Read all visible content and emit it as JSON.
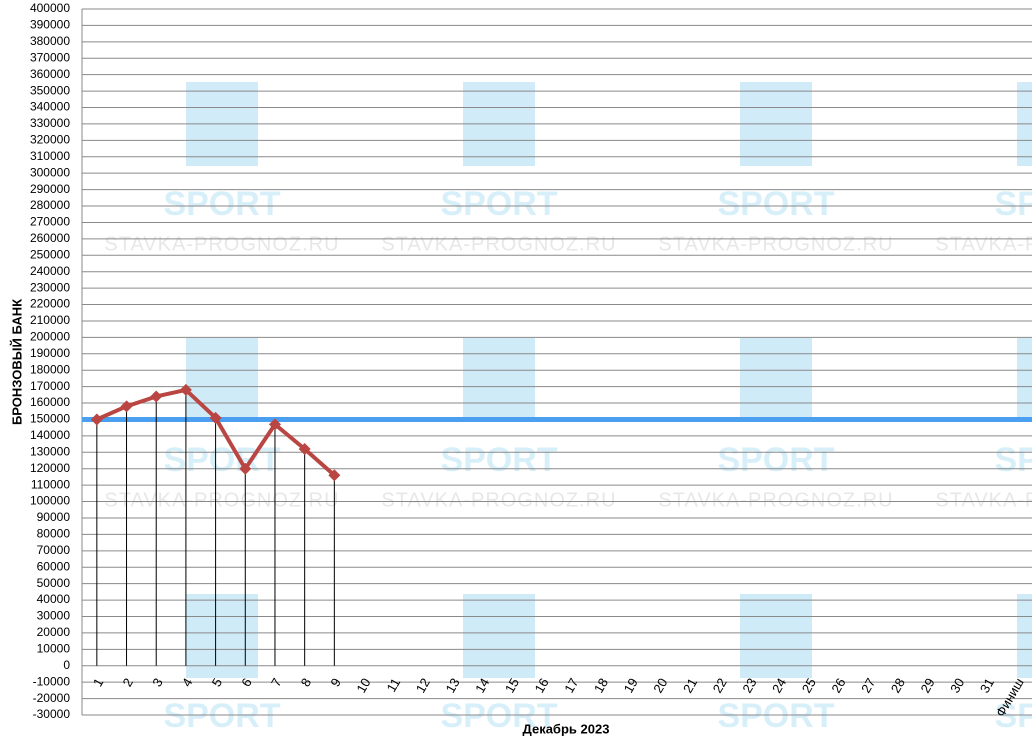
{
  "chart_data": {
    "type": "line",
    "y_label": "БРОНЗОВЫЙ БАНК",
    "x_label": "Декабрь 2023",
    "watermark": [
      "SPORT",
      "STAVKA-PROGNOZ.RU"
    ],
    "categories": [
      "1",
      "2",
      "3",
      "4",
      "5",
      "6",
      "7",
      "8",
      "9",
      "10",
      "11",
      "12",
      "13",
      "14",
      "15",
      "16",
      "17",
      "18",
      "19",
      "20",
      "21",
      "22",
      "23",
      "24",
      "25",
      "26",
      "27",
      "28",
      "29",
      "30",
      "31",
      "Финиш"
    ],
    "series": [
      {
        "name": "БРОНЗОВЫЙ БАНК",
        "color": "#b94643",
        "values": [
          150000,
          158000,
          164000,
          168000,
          151000,
          120000,
          147000,
          132000,
          116000,
          null,
          null,
          null,
          null,
          null,
          null,
          null,
          null,
          null,
          null,
          null,
          null,
          null,
          null,
          null,
          null,
          null,
          null,
          null,
          null,
          null,
          null,
          null
        ]
      }
    ],
    "reference_line": {
      "value": 150000,
      "color": "#4a9ff0"
    },
    "ylim": [
      -30000,
      400000
    ],
    "yticks": [
      -30000,
      -20000,
      -10000,
      0,
      10000,
      20000,
      30000,
      40000,
      50000,
      60000,
      70000,
      80000,
      90000,
      100000,
      110000,
      120000,
      130000,
      140000,
      150000,
      160000,
      170000,
      180000,
      190000,
      200000,
      210000,
      220000,
      230000,
      240000,
      250000,
      260000,
      270000,
      280000,
      290000,
      300000,
      310000,
      320000,
      330000,
      340000,
      350000,
      360000,
      370000,
      380000,
      390000,
      400000
    ],
    "grid": true
  }
}
